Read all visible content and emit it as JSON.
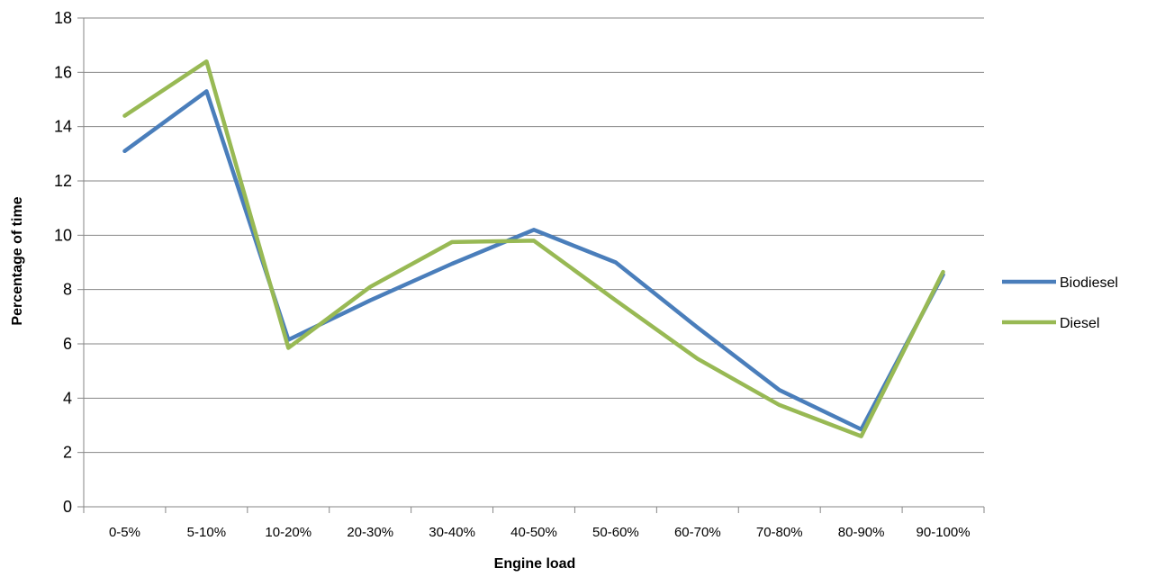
{
  "chart_data": {
    "type": "line",
    "title": "",
    "xlabel": "Engine load",
    "ylabel": "Percentage of time",
    "categories": [
      "0-5%",
      "5-10%",
      "10-20%",
      "20-30%",
      "30-40%",
      "40-50%",
      "50-60%",
      "60-70%",
      "70-80%",
      "80-90%",
      "90-100%"
    ],
    "series": [
      {
        "name": "Biodiesel",
        "color": "#4a7ebb",
        "values": [
          13.1,
          15.3,
          6.15,
          7.6,
          8.95,
          10.2,
          9.0,
          6.6,
          4.3,
          2.85,
          8.55
        ]
      },
      {
        "name": "Diesel",
        "color": "#98b954",
        "values": [
          14.4,
          16.4,
          5.85,
          8.1,
          9.75,
          9.8,
          7.6,
          5.45,
          3.75,
          2.6,
          8.65
        ]
      }
    ],
    "ylim": [
      0,
      18
    ],
    "yticks": [
      0,
      2,
      4,
      6,
      8,
      10,
      12,
      14,
      16,
      18
    ],
    "grid": true,
    "legend": "right"
  }
}
